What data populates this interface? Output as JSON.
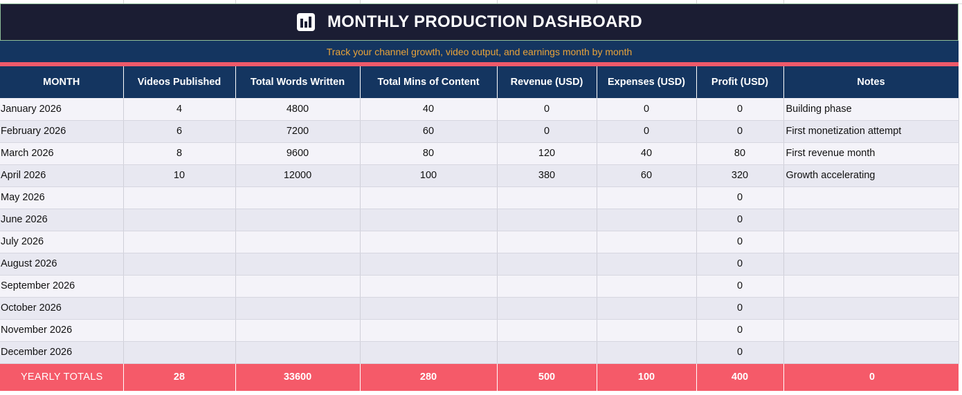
{
  "title": "MONTHLY PRODUCTION DASHBOARD",
  "subtitle": "Track your channel growth, video output, and earnings month by month",
  "icon": "bar-chart-icon",
  "colors": {
    "title_bg": "#1b1d33",
    "header_bg": "#143560",
    "subtitle_text": "#e8a33a",
    "totals_bg": "#f55a69",
    "row_odd": "#f4f3f9",
    "row_even": "#e8e8f1"
  },
  "columns": [
    "MONTH",
    "Videos Published",
    "Total Words Written",
    "Total Mins of Content",
    "Revenue (USD)",
    "Expenses (USD)",
    "Profit (USD)",
    "Notes"
  ],
  "rows": [
    {
      "month": "January 2026",
      "videos": "4",
      "words": "4800",
      "mins": "40",
      "revenue": "0",
      "expenses": "0",
      "profit": "0",
      "notes": "Building phase"
    },
    {
      "month": "February 2026",
      "videos": "6",
      "words": "7200",
      "mins": "60",
      "revenue": "0",
      "expenses": "0",
      "profit": "0",
      "notes": "First monetization attempt"
    },
    {
      "month": "March 2026",
      "videos": "8",
      "words": "9600",
      "mins": "80",
      "revenue": "120",
      "expenses": "40",
      "profit": "80",
      "notes": "First revenue month"
    },
    {
      "month": "April 2026",
      "videos": "10",
      "words": "12000",
      "mins": "100",
      "revenue": "380",
      "expenses": "60",
      "profit": "320",
      "notes": "Growth accelerating"
    },
    {
      "month": "May 2026",
      "videos": "",
      "words": "",
      "mins": "",
      "revenue": "",
      "expenses": "",
      "profit": "0",
      "notes": ""
    },
    {
      "month": "June 2026",
      "videos": "",
      "words": "",
      "mins": "",
      "revenue": "",
      "expenses": "",
      "profit": "0",
      "notes": ""
    },
    {
      "month": "July 2026",
      "videos": "",
      "words": "",
      "mins": "",
      "revenue": "",
      "expenses": "",
      "profit": "0",
      "notes": ""
    },
    {
      "month": "August 2026",
      "videos": "",
      "words": "",
      "mins": "",
      "revenue": "",
      "expenses": "",
      "profit": "0",
      "notes": ""
    },
    {
      "month": "September 2026",
      "videos": "",
      "words": "",
      "mins": "",
      "revenue": "",
      "expenses": "",
      "profit": "0",
      "notes": ""
    },
    {
      "month": "October 2026",
      "videos": "",
      "words": "",
      "mins": "",
      "revenue": "",
      "expenses": "",
      "profit": "0",
      "notes": ""
    },
    {
      "month": "November 2026",
      "videos": "",
      "words": "",
      "mins": "",
      "revenue": "",
      "expenses": "",
      "profit": "0",
      "notes": ""
    },
    {
      "month": "December 2026",
      "videos": "",
      "words": "",
      "mins": "",
      "revenue": "",
      "expenses": "",
      "profit": "0",
      "notes": ""
    }
  ],
  "totals": {
    "label": "YEARLY TOTALS",
    "videos": "28",
    "words": "33600",
    "mins": "280",
    "revenue": "500",
    "expenses": "100",
    "profit": "400",
    "notes": "0"
  }
}
